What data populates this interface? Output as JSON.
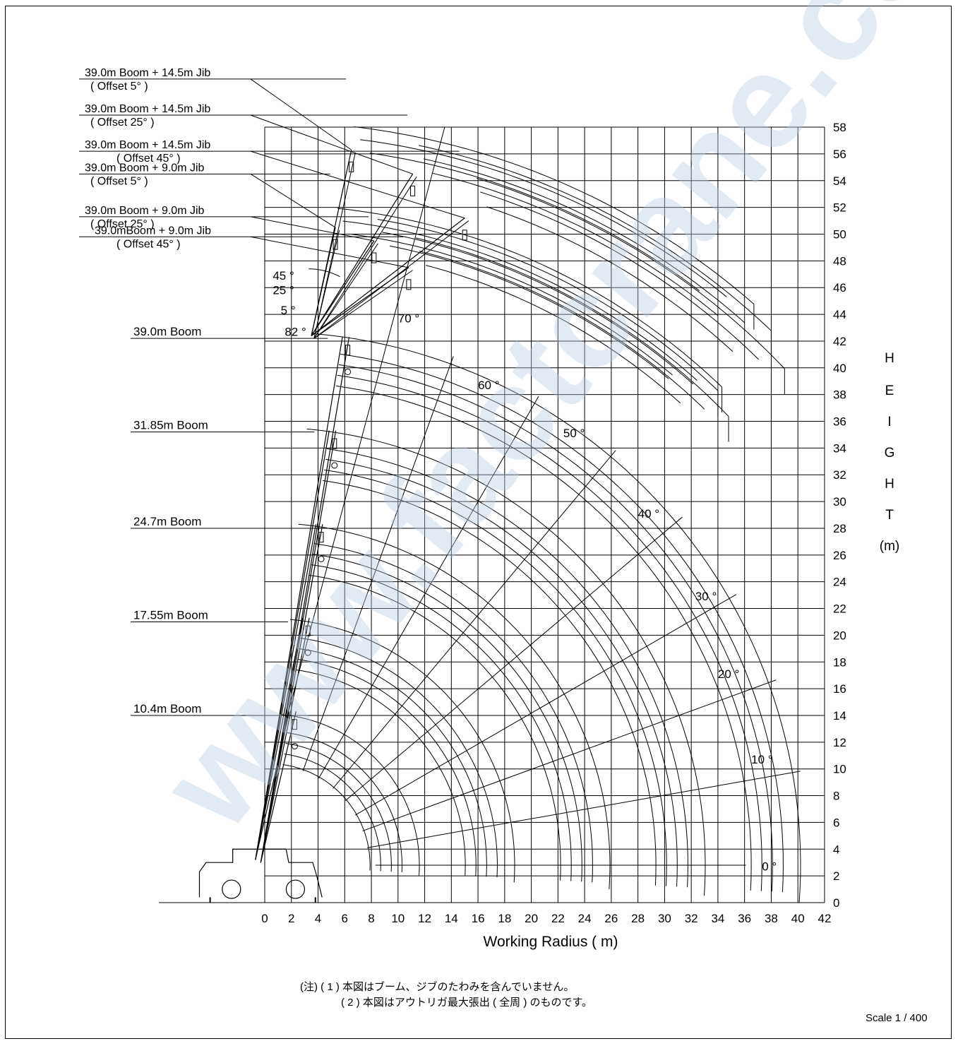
{
  "chart_data": {
    "type": "line",
    "xlabel": "Working Radius ( m)",
    "ylabel_letters": [
      "H",
      "E",
      "I",
      "G",
      "H",
      "T",
      "(m)"
    ],
    "xlim": [
      0,
      42
    ],
    "ylim": [
      0,
      58
    ],
    "x_ticks": [
      "0",
      "2",
      "4",
      "6",
      "8",
      "10",
      "12",
      "14",
      "16",
      "18",
      "20",
      "22",
      "24",
      "26",
      "28",
      "30",
      "32",
      "34",
      "36",
      "38",
      "40",
      "42"
    ],
    "y_ticks": [
      "0",
      "2",
      "4",
      "6",
      "8",
      "10",
      "12",
      "14",
      "16",
      "18",
      "20",
      "22",
      "24",
      "26",
      "28",
      "30",
      "32",
      "34",
      "36",
      "38",
      "40",
      "42",
      "44",
      "46",
      "48",
      "50",
      "52",
      "54",
      "56",
      "58"
    ],
    "grid": true,
    "pivot": {
      "x": 0.3,
      "y": 2.8
    },
    "boom_angles": [
      {
        "label": "0 °",
        "angle": 0,
        "label_at": [
          37.3,
          2.4
        ]
      },
      {
        "label": "10 °",
        "angle": 10,
        "label_at": [
          36.5,
          10.4
        ]
      },
      {
        "label": "20 °",
        "angle": 20,
        "label_at": [
          34.0,
          16.8
        ]
      },
      {
        "label": "30 °",
        "angle": 30,
        "label_at": [
          32.3,
          22.6
        ]
      },
      {
        "label": "40 °",
        "angle": 40,
        "label_at": [
          28.0,
          28.8
        ]
      },
      {
        "label": "50 °",
        "angle": 50,
        "label_at": [
          22.4,
          34.8
        ]
      },
      {
        "label": "60 °",
        "angle": 60,
        "label_at": [
          16.0,
          38.4
        ]
      },
      {
        "label": "70 °",
        "angle": 70,
        "label_at": [
          10.0,
          43.4
        ]
      }
    ],
    "series": [
      {
        "name": "10.4m Boom",
        "radius": 10.4,
        "tip_height": 14.3,
        "label_y": 14.0
      },
      {
        "name": "17.55m Boom",
        "radius": 17.55,
        "tip_height": 21.3,
        "label_y": 21.0
      },
      {
        "name": "24.7m Boom",
        "radius": 24.7,
        "tip_height": 28.3,
        "label_y": 28.0
      },
      {
        "name": "31.85m Boom",
        "radius": 31.85,
        "tip_height": 35.3,
        "label_y": 35.2
      },
      {
        "name": "39.0m Boom",
        "radius": 39.0,
        "tip_height": 42.3,
        "label_y": 42.2
      },
      {
        "name": "39.0mBoom + 9.0m Jib",
        "offset": "( Offset 45° )",
        "tip": [
          10.8,
          47.5
        ],
        "outer_r": 48.0,
        "end_x": 34.8,
        "label_y": 49.8
      },
      {
        "name": "39.0m Boom + 9.0m Jib",
        "offset": "( Offset 25° )",
        "tip": [
          8.2,
          49.5
        ],
        "outer_r": 48.8,
        "end_x": 34.0,
        "label_y": 51.3
      },
      {
        "name": "39.0m Boom + 9.0m Jib",
        "offset": "( Offset 5° )",
        "tip": [
          5.3,
          50.5
        ],
        "outer_r": 49.2,
        "end_x": 34.3,
        "label_y": 54.5
      },
      {
        "name": "39.0m Boom + 14.5m Jib",
        "offset": "( Offset 45° )",
        "tip": [
          15.0,
          51.2
        ],
        "outer_r": 53.5,
        "end_x": 39.0,
        "label_y": 56.2
      },
      {
        "name": "39.0m Boom + 14.5m Jib",
        "offset": "( Offset 25° )",
        "tip": [
          11.1,
          54.5
        ],
        "outer_r": 54.8,
        "end_x": 38.0,
        "label_y": 58.9
      },
      {
        "name": "39.0m Boom + 14.5m Jib",
        "offset": "( Offset 5° )",
        "tip": [
          6.5,
          56.3
        ],
        "outer_r": 55.4,
        "end_x": 36.7,
        "label_y": 61.6
      }
    ],
    "annotations": [
      {
        "text": "45 °",
        "at": [
          0.6,
          46.6
        ]
      },
      {
        "text": "25 °",
        "at": [
          0.6,
          45.5
        ]
      },
      {
        "text": "5 °",
        "at": [
          1.2,
          44.0
        ]
      },
      {
        "text": "82 °",
        "at": [
          1.5,
          42.4
        ]
      }
    ]
  },
  "notes": [
    "(注) ( 1 ) 本図はブーム、ジブのたわみを含んでいません。",
    "( 2 ) 本図はアウトリガ最大張出 ( 全周 ) のものです。"
  ],
  "scale": "Scale 1 / 400",
  "watermark": "www.factcrane.com",
  "colors": {
    "line": "#000000",
    "watermark": "#b9cfe4"
  }
}
